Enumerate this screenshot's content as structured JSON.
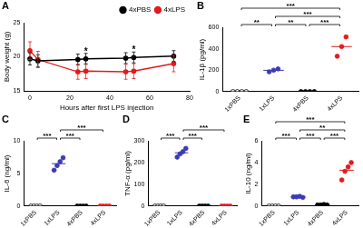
{
  "chart_data": [
    {
      "panel": "A",
      "type": "line",
      "xlabel": "Hours after first LPS injection",
      "ylabel": "Body weight (g)",
      "x": [
        0,
        4,
        24,
        28,
        48,
        52,
        72
      ],
      "series": [
        {
          "name": "4xPBS",
          "color": "#000000",
          "marker": "circle",
          "values": [
            19.7,
            19.4,
            19.6,
            19.7,
            19.8,
            19.9,
            20.1
          ],
          "errors": [
            0.9,
            0.9,
            0.8,
            0.8,
            0.8,
            0.8,
            0.8
          ]
        },
        {
          "name": "4xLPS",
          "color": "#e41a1c",
          "marker": "circle",
          "values": [
            20.9,
            19.6,
            17.8,
            17.9,
            17.8,
            17.9,
            19.0
          ],
          "errors": [
            1.3,
            1.2,
            1.1,
            1.1,
            1.1,
            1.1,
            1.2
          ]
        }
      ],
      "xlim": [
        -3,
        80
      ],
      "xticks": [
        0,
        20,
        40,
        60,
        80
      ],
      "ylim": [
        15,
        25
      ],
      "yticks": [
        15,
        20,
        25
      ],
      "legend": "upper right",
      "grid": false,
      "annotations": [
        {
          "x": 28,
          "text": "*"
        },
        {
          "x": 52,
          "text": "*"
        }
      ]
    },
    {
      "panel": "B",
      "type": "scatter",
      "ylabel": "IL-1β (pg/ml)",
      "categories": [
        "1xPBS",
        "1xLPS",
        "4xPBS",
        "4xLPS"
      ],
      "colors": [
        "#ffffff",
        "#3b3bb3",
        "#000000",
        "#e41a1c"
      ],
      "values": [
        [
          0,
          0,
          0,
          0
        ],
        [
          185,
          200,
          212
        ],
        [
          0,
          0,
          0,
          0
        ],
        [
          330,
          420,
          510
        ]
      ],
      "means": [
        0,
        199,
        0,
        420
      ],
      "ylim": [
        0,
        600
      ],
      "yticks": [
        0,
        200,
        400,
        600
      ],
      "grid": false,
      "significance": [
        {
          "from": "1xPBS",
          "to": "1xLPS",
          "label": "**"
        },
        {
          "from": "1xLPS",
          "to": "4xPBS",
          "label": "**"
        },
        {
          "from": "4xPBS",
          "to": "4xLPS",
          "label": "***"
        },
        {
          "from": "1xLPS",
          "to": "4xLPS",
          "label": "***"
        },
        {
          "from": "1xPBS",
          "to": "4xLPS",
          "label": "***"
        }
      ]
    },
    {
      "panel": "C",
      "type": "scatter",
      "ylabel": "IL-6 (ng/ml)",
      "categories": [
        "1xPBS",
        "1xLPS",
        "4xPBS",
        "4xLPS"
      ],
      "colors": [
        "#ffffff",
        "#3b3bb3",
        "#000000",
        "#e41a1c"
      ],
      "values": [
        [
          0,
          0,
          0,
          0
        ],
        [
          5.5,
          6.2,
          6.8,
          7.4
        ],
        [
          0,
          0,
          0,
          0
        ],
        [
          0,
          0,
          0,
          0
        ]
      ],
      "means": [
        0,
        6.5,
        0,
        0
      ],
      "ylim": [
        0,
        10
      ],
      "yticks": [
        0,
        5,
        10
      ],
      "grid": false,
      "significance": [
        {
          "from": "1xPBS",
          "to": "1xLPS",
          "label": "***"
        },
        {
          "from": "1xLPS",
          "to": "4xPBS",
          "label": "***"
        },
        {
          "from": "1xLPS",
          "to": "4xLPS",
          "label": "***"
        }
      ]
    },
    {
      "panel": "D",
      "type": "scatter",
      "ylabel": "TNF-α (pg/ml)",
      "categories": [
        "1xPBS",
        "1xLPS",
        "4xPBS",
        "4xLPS"
      ],
      "colors": [
        "#ffffff",
        "#3b3bb3",
        "#000000",
        "#e41a1c"
      ],
      "values": [
        [
          0,
          0,
          0,
          0
        ],
        [
          225,
          240,
          250,
          265
        ],
        [
          0,
          0,
          0,
          0
        ],
        [
          0,
          0,
          0,
          0
        ]
      ],
      "means": [
        0,
        245,
        0,
        0
      ],
      "ylim": [
        0,
        300
      ],
      "yticks": [
        0,
        100,
        200,
        300
      ],
      "grid": false,
      "significance": [
        {
          "from": "1xPBS",
          "to": "1xLPS",
          "label": "***"
        },
        {
          "from": "1xLPS",
          "to": "4xPBS",
          "label": "***"
        },
        {
          "from": "1xLPS",
          "to": "4xLPS",
          "label": "***"
        }
      ]
    },
    {
      "panel": "E",
      "type": "scatter",
      "ylabel": "IL-10 (ng/ml)",
      "categories": [
        "1xPBS",
        "1xLPS",
        "4xPBS",
        "4xLPS"
      ],
      "colors": [
        "#ffffff",
        "#3b3bb3",
        "#000000",
        "#e41a1c"
      ],
      "values": [
        [
          0,
          0,
          0,
          0
        ],
        [
          0.85,
          0.85,
          0.9,
          0.8
        ],
        [
          0.1,
          0.1,
          0.15,
          0.1
        ],
        [
          2.4,
          3.2,
          3.6,
          4.0
        ]
      ],
      "means": [
        0,
        0.85,
        0.11,
        3.3
      ],
      "ylim": [
        0,
        6
      ],
      "yticks": [
        0,
        2,
        4,
        6
      ],
      "grid": false,
      "significance": [
        {
          "from": "1xPBS",
          "to": "1xLPS",
          "label": "***"
        },
        {
          "from": "1xLPS",
          "to": "4xPBS",
          "label": "***"
        },
        {
          "from": "4xPBS",
          "to": "4xLPS",
          "label": "***"
        },
        {
          "from": "1xLPS",
          "to": "4xLPS",
          "label": "**"
        },
        {
          "from": "1xPBS",
          "to": "4xLPS",
          "label": "***"
        }
      ]
    }
  ]
}
